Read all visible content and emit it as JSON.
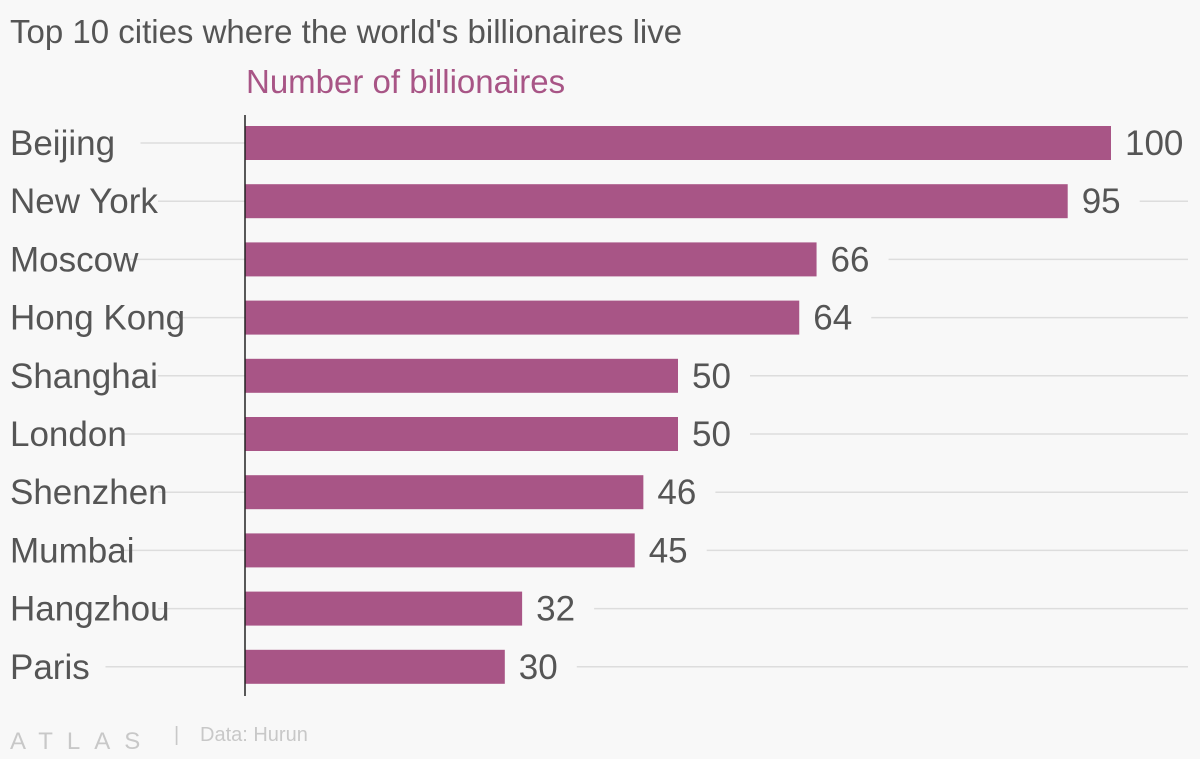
{
  "chart_data": {
    "type": "bar",
    "orientation": "horizontal",
    "title": "Top 10 cities where the world's billionaires live",
    "subtitle": "Number of billionaires",
    "categories": [
      "Beijing",
      "New York",
      "Moscow",
      "Hong Kong",
      "Shanghai",
      "London",
      "Shenzhen",
      "Mumbai",
      "Hangzhou",
      "Paris"
    ],
    "values": [
      100,
      95,
      66,
      64,
      50,
      50,
      46,
      45,
      32,
      30
    ],
    "xlim": [
      0,
      100
    ],
    "grid": true,
    "data_labels": true
  },
  "colors": {
    "bar": "#a85586",
    "subtitle": "#a85586",
    "text": "#555555",
    "gridline": "#dddddd",
    "axis": "#222222",
    "footer": "#c8c8c8",
    "background": "#f8f8f8"
  },
  "footer": {
    "brand": "ATLAS",
    "divider": "|",
    "source": "Data: Hurun"
  }
}
